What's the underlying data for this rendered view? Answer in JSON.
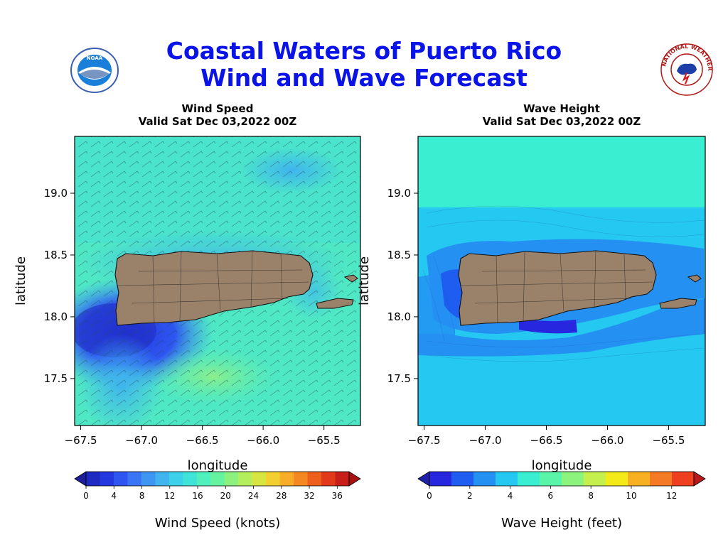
{
  "header": {
    "title_line1": "Coastal Waters of Puerto Rico",
    "title_line2": "Wind and Wave Forecast",
    "left_logo_text": "NOAA",
    "right_logo_text": "NATIONAL WEATHER SERVICE"
  },
  "panels": [
    {
      "title": "Wind Speed",
      "valid": "Valid Sat Dec 03,2022 00Z",
      "xlabel": "longitude",
      "ylabel": "latitude",
      "xticks": [
        "−67.5",
        "−67.0",
        "−66.5",
        "−66.0",
        "−65.5"
      ],
      "yticks": [
        "19.0",
        "18.5",
        "18.0",
        "17.5"
      ],
      "colorbar_label": "Wind Speed (knots)",
      "colorbar_ticks": [
        "0",
        "4",
        "8",
        "12",
        "16",
        "20",
        "24",
        "28",
        "32",
        "36"
      ],
      "colorbar_colors": [
        "#1c1e9a",
        "#1f2ac0",
        "#2438e0",
        "#2e55f0",
        "#3a75f4",
        "#3f95f2",
        "#3fb4ee",
        "#3dd0ea",
        "#3fe3d8",
        "#4ff0bc",
        "#66f39f",
        "#8cf27e",
        "#b4ee5c",
        "#d8e43f",
        "#f2cf2e",
        "#f7ad27",
        "#f48822",
        "#ee5f1e",
        "#e13a1a",
        "#c81e18",
        "#a81212"
      ]
    },
    {
      "title": "Wave Height",
      "valid": "Valid Sat Dec 03,2022 00Z",
      "xlabel": "longitude",
      "ylabel": "latitude",
      "xticks": [
        "−67.5",
        "−67.0",
        "−66.5",
        "−66.0",
        "−65.5"
      ],
      "yticks": [
        "19.0",
        "18.5",
        "18.0",
        "17.5"
      ],
      "colorbar_label": "Wave Height (feet)",
      "colorbar_ticks": [
        "0",
        "2",
        "4",
        "6",
        "8",
        "10",
        "12"
      ],
      "colorbar_colors": [
        "#1f1fa8",
        "#2727e0",
        "#1f5cf0",
        "#2490f2",
        "#25c8f0",
        "#3aeed2",
        "#5af4a8",
        "#8cf37c",
        "#c4ef4c",
        "#f4ea1a",
        "#f7b021",
        "#f57a24",
        "#ee3f1e",
        "#b81818"
      ]
    }
  ]
}
